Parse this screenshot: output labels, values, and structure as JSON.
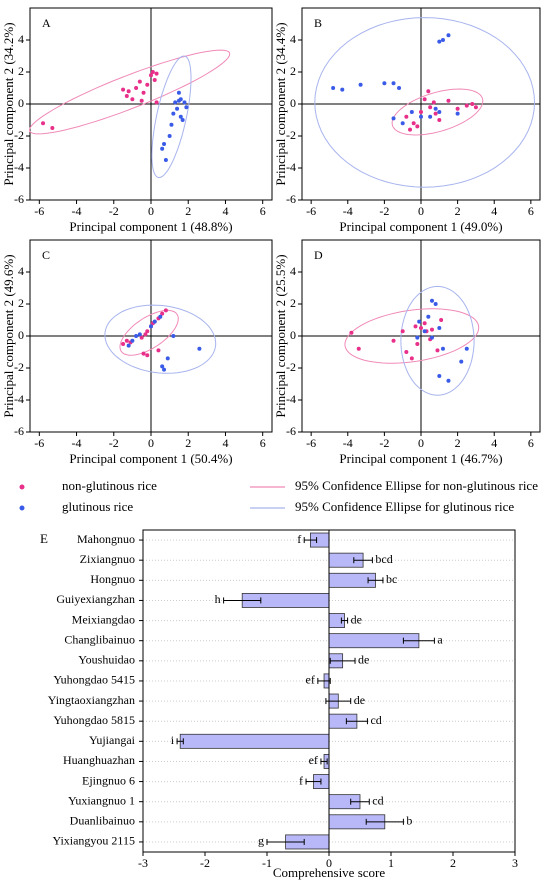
{
  "chart_data": [
    {
      "type": "scatter",
      "panel": "A",
      "xlabel": "Principal component 1 (48.8%)",
      "ylabel": "Principal component 2 (34.2%)",
      "xlim": [
        -6.5,
        6.5
      ],
      "ylim": [
        -6,
        6
      ],
      "xticks": [
        -6,
        -4,
        -2,
        0,
        2,
        4,
        6
      ],
      "yticks": [
        -6,
        -4,
        -2,
        0,
        2,
        4
      ],
      "series": [
        {
          "color": "#e8308a",
          "x": [
            -5.8,
            -5.3,
            -1.5,
            -1.3,
            -1.2,
            -1.0,
            -0.8,
            -0.6,
            -0.4,
            -0.2,
            0.0,
            0.1,
            0.2,
            0.3,
            0.3,
            -0.5
          ],
          "values": [
            -1.2,
            -1.5,
            0.9,
            0.5,
            0.8,
            0.3,
            1.0,
            1.4,
            0.7,
            1.2,
            1.8,
            2.0,
            1.5,
            1.9,
            0.1,
            0.2
          ]
        },
        {
          "color": "#3a5be8",
          "x": [
            0.6,
            0.7,
            0.8,
            1.0,
            1.2,
            1.3,
            1.4,
            1.5,
            1.6,
            1.6,
            1.7,
            1.8,
            1.1,
            1.5,
            1.9
          ],
          "values": [
            -2.8,
            -2.5,
            -3.5,
            -2.0,
            -0.6,
            0.1,
            -0.3,
            0.2,
            -0.8,
            0.3,
            -1.0,
            0.1,
            -1.3,
            0.7,
            -0.2
          ]
        }
      ],
      "ellipses": [
        {
          "color": "#f08ab8",
          "center": [
            -1.15,
            0.75
          ],
          "axes": [
            5.9,
            1.0
          ],
          "angle": 24.6
        },
        {
          "color": "#a8b4ee",
          "center": [
            1.1,
            -0.8
          ],
          "axes": [
            3.86,
            0.8
          ],
          "angle": 79.6
        }
      ]
    },
    {
      "type": "scatter",
      "panel": "B",
      "xlabel": "Principal component 1 (49.0%)",
      "ylabel": "Principal component 2 (34.4%)",
      "xlim": [
        -6.5,
        6.5
      ],
      "ylim": [
        -6,
        6
      ],
      "xticks": [
        -6,
        -4,
        -2,
        0,
        2,
        4,
        6
      ],
      "yticks": [
        -6,
        -4,
        -2,
        0,
        2,
        4
      ],
      "series": [
        {
          "color": "#e8308a",
          "x": [
            -0.6,
            -0.4,
            -0.2,
            0.0,
            0.2,
            0.4,
            0.5,
            0.7,
            0.8,
            1.0,
            1.5,
            2.0,
            2.5,
            2.8,
            3.0,
            -0.8
          ],
          "values": [
            -1.6,
            -1.2,
            -1.4,
            -0.5,
            0.3,
            0.8,
            -0.2,
            0.1,
            -0.6,
            -1.0,
            0.2,
            -0.3,
            -0.1,
            0.0,
            -0.2,
            -0.8
          ]
        },
        {
          "color": "#3a5be8",
          "x": [
            -4.8,
            -4.3,
            -3.3,
            -2.0,
            -1.5,
            -1.2,
            -1.5,
            -1.0,
            -0.5,
            0.0,
            0.5,
            1.0,
            1.0,
            1.5,
            1.2,
            2.0,
            0.8
          ],
          "values": [
            1.0,
            0.9,
            1.2,
            1.3,
            1.3,
            1.0,
            -0.9,
            -1.2,
            -0.5,
            -0.8,
            -0.8,
            -0.5,
            3.9,
            4.3,
            4.0,
            -0.6,
            -0.3
          ]
        }
      ],
      "ellipses": [
        {
          "color": "#f08ab8",
          "center": [
            0.9,
            -0.5
          ],
          "axes": [
            2.6,
            1.2
          ],
          "angle": 20
        },
        {
          "color": "#a8b4ee",
          "center": [
            0.2,
            0.1
          ],
          "axes": [
            6.0,
            5.3
          ],
          "angle": 0
        }
      ]
    },
    {
      "type": "scatter",
      "panel": "C",
      "xlabel": "Principal component 1 (50.4%)",
      "ylabel": "Principal component 2 (49.6%)",
      "xlim": [
        -6.5,
        6.5
      ],
      "ylim": [
        -6,
        6
      ],
      "xticks": [
        -6,
        -4,
        -2,
        0,
        2,
        4,
        6
      ],
      "yticks": [
        -6,
        -4,
        -2,
        0,
        2,
        4
      ],
      "series": [
        {
          "color": "#e8308a",
          "x": [
            -1.5,
            -1.3,
            -1.1,
            -0.5,
            -0.3,
            -0.2,
            0.0,
            0.1,
            0.2,
            0.4,
            0.6,
            0.8,
            -0.4,
            -0.2,
            0.4
          ],
          "values": [
            -0.5,
            -0.3,
            -0.4,
            -0.1,
            0.1,
            0.3,
            0.6,
            0.8,
            0.9,
            1.1,
            1.4,
            1.6,
            -1.1,
            -1.2,
            -0.9
          ]
        },
        {
          "color": "#3a5be8",
          "x": [
            -1.2,
            -1.0,
            -0.8,
            -0.6,
            0.0,
            0.2,
            0.5,
            0.6,
            0.7,
            0.9,
            1.2,
            2.6
          ],
          "values": [
            -0.6,
            -0.3,
            0.0,
            0.1,
            0.6,
            0.9,
            1.2,
            -1.9,
            -2.1,
            -1.4,
            0.0,
            -0.8
          ]
        }
      ],
      "ellipses": [
        {
          "color": "#f08ab8",
          "center": [
            -0.1,
            0.2
          ],
          "axes": [
            1.9,
            0.9
          ],
          "angle": 40
        },
        {
          "color": "#a8b4ee",
          "center": [
            0.5,
            -0.2
          ],
          "axes": [
            3.0,
            2.1
          ],
          "angle": -10
        }
      ]
    },
    {
      "type": "scatter",
      "panel": "D",
      "xlabel": "Principal component 1 (46.7%)",
      "ylabel": "Principal component 2 (25.5%)",
      "xlim": [
        -6.5,
        6.5
      ],
      "ylim": [
        -6,
        6
      ],
      "xticks": [
        -6,
        -4,
        -2,
        0,
        2,
        4,
        6
      ],
      "yticks": [
        -6,
        -4,
        -2,
        0,
        2,
        4
      ],
      "series": [
        {
          "color": "#e8308a",
          "x": [
            -3.8,
            -3.4,
            -1.5,
            -1.0,
            -0.8,
            -0.5,
            -0.3,
            0.0,
            0.2,
            0.3,
            0.5,
            0.6,
            0.9,
            1.1,
            -0.2
          ],
          "values": [
            0.2,
            -0.8,
            -0.3,
            0.3,
            -1.0,
            -1.4,
            0.6,
            0.5,
            0.8,
            0.3,
            -0.2,
            0.4,
            -0.9,
            1.0,
            -0.5
          ]
        },
        {
          "color": "#3a5be8",
          "x": [
            -0.2,
            0.2,
            0.4,
            0.6,
            0.8,
            1.0,
            1.2,
            1.0,
            1.5,
            2.2,
            2.5,
            0.6,
            -0.1
          ],
          "values": [
            -0.1,
            0.3,
            1.2,
            2.2,
            2.0,
            0.5,
            -0.8,
            -2.5,
            -2.8,
            -1.6,
            -0.8,
            -0.1,
            0.9
          ]
        }
      ],
      "ellipses": [
        {
          "color": "#f08ab8",
          "center": [
            -0.5,
            0.0
          ],
          "axes": [
            3.7,
            1.6
          ],
          "angle": 10
        },
        {
          "color": "#a8b4ee",
          "center": [
            0.9,
            -0.3
          ],
          "axes": [
            2.0,
            3.4
          ],
          "angle": 0
        }
      ]
    },
    {
      "type": "hbar",
      "panel": "E",
      "xlabel": "Comprehensive score",
      "xlim": [
        -3,
        3
      ],
      "xticks": [
        -3,
        -2,
        -1,
        0,
        1,
        2,
        3
      ],
      "color": "#b8b8f8",
      "categories": [
        "Mahongnuo",
        "Zixiangnuo",
        "Hongnuo",
        "Guiyexiangzhan",
        "Meixiangdao",
        "Changlibainuo",
        "Youshuidao",
        "Yuhongdao 5415",
        "Yingtaoxiangzhan",
        "Yuhongdao 5815",
        "Yujiangai",
        "Huanghuazhan",
        "Ejingnuo 6",
        "Yuxiangnuo 1",
        "Duanlibainuo",
        "Yixiangyou 2115"
      ],
      "values": [
        -0.3,
        0.55,
        0.75,
        -1.4,
        0.25,
        1.45,
        0.22,
        -0.08,
        0.15,
        0.45,
        -2.4,
        -0.08,
        -0.25,
        0.5,
        0.9,
        -0.7
      ],
      "errors": [
        0.1,
        0.15,
        0.12,
        0.3,
        0.05,
        0.25,
        0.2,
        0.1,
        0.2,
        0.17,
        0.05,
        0.05,
        0.12,
        0.15,
        0.3,
        0.3
      ],
      "letters": [
        "f",
        "bcd",
        "bc",
        "h",
        "de",
        "a",
        "de",
        "ef",
        "de",
        "cd",
        "i",
        "ef",
        "f",
        "cd",
        "b",
        "g"
      ]
    }
  ],
  "legend": {
    "points": [
      {
        "label": "non-glutinous rice",
        "color": "#e8308a"
      },
      {
        "label": "glutinous rice",
        "color": "#3a5be8"
      }
    ],
    "ellipses": [
      {
        "label": "95% Confidence Ellipse for non-glutinous rice",
        "color": "#f08ab8"
      },
      {
        "label": "95% Confidence Ellipse for glutinous rice",
        "color": "#a8b4ee"
      }
    ]
  }
}
